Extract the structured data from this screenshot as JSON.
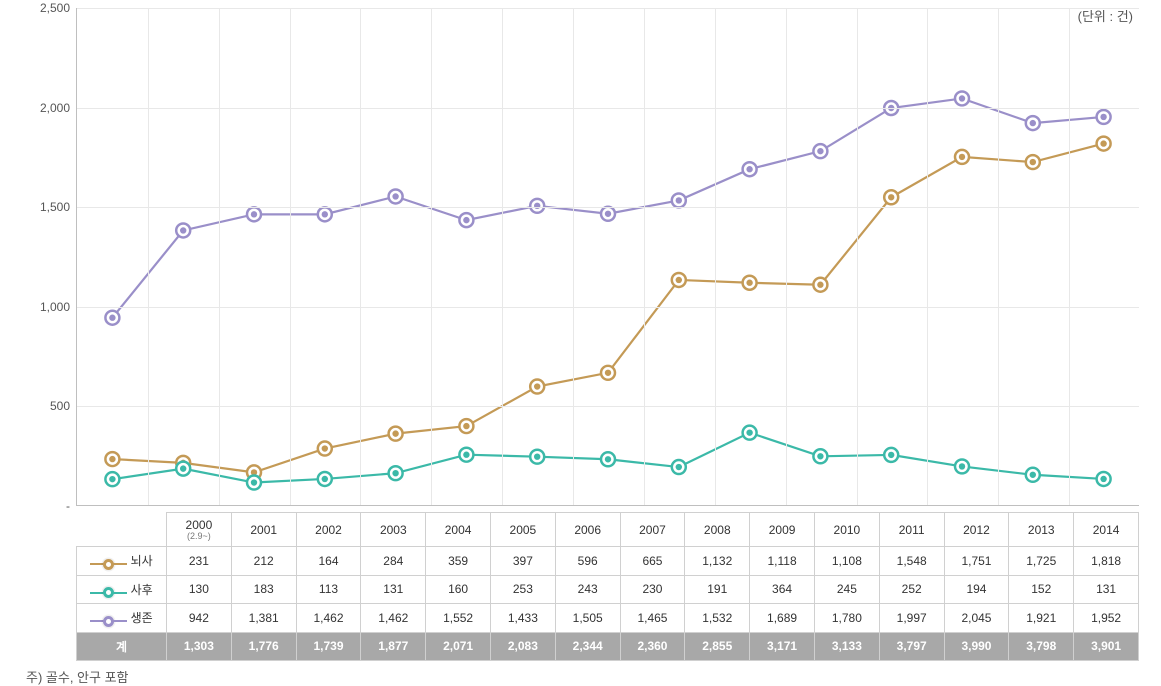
{
  "unit_label": "(단위 : 건)",
  "footnote": "주) 골수, 안구 포함",
  "chart": {
    "type": "line",
    "ymin": 0,
    "ymax": 2500,
    "ytick_step": 500,
    "yticks": [
      "-",
      "500",
      "1,000",
      "1,500",
      "2,000",
      "2,500"
    ],
    "xlabels": [
      "2000",
      "2001",
      "2002",
      "2003",
      "2004",
      "2005",
      "2006",
      "2007",
      "2008",
      "2009",
      "2010",
      "2011",
      "2012",
      "2013",
      "2014"
    ],
    "xlabel_sub0": "(2.9~)",
    "grid_color": "#e8e8e8",
    "axis_color": "#bfbfbf",
    "background_color": "#ffffff",
    "tick_fontsize": 12,
    "tick_color": "#555555",
    "marker_outer_radius": 7,
    "marker_inner_radius": 3.2,
    "line_width": 2.2,
    "series": [
      {
        "name": "뇌사",
        "color": "#c49a56",
        "values": [
          231,
          212,
          164,
          284,
          359,
          397,
          596,
          665,
          1132,
          1118,
          1108,
          1548,
          1751,
          1725,
          1818
        ],
        "display": [
          "231",
          "212",
          "164",
          "284",
          "359",
          "397",
          "596",
          "665",
          "1,132",
          "1,118",
          "1,108",
          "1,548",
          "1,751",
          "1,725",
          "1,818"
        ]
      },
      {
        "name": "사후",
        "color": "#3bb9a8",
        "values": [
          130,
          183,
          113,
          131,
          160,
          253,
          243,
          230,
          191,
          364,
          245,
          252,
          194,
          152,
          131
        ],
        "display": [
          "130",
          "183",
          "113",
          "131",
          "160",
          "253",
          "243",
          "230",
          "191",
          "364",
          "245",
          "252",
          "194",
          "152",
          "131"
        ]
      },
      {
        "name": "생존",
        "color": "#9a8fc9",
        "values": [
          942,
          1381,
          1462,
          1462,
          1552,
          1433,
          1505,
          1465,
          1532,
          1689,
          1780,
          1997,
          2045,
          1921,
          1952
        ],
        "display": [
          "942",
          "1,381",
          "1,462",
          "1,462",
          "1,552",
          "1,433",
          "1,505",
          "1,465",
          "1,532",
          "1,689",
          "1,780",
          "1,997",
          "2,045",
          "1,921",
          "1,952"
        ]
      }
    ],
    "sum_label": "계",
    "sum_row": [
      "1,303",
      "1,776",
      "1,739",
      "1,877",
      "2,071",
      "2,083",
      "2,344",
      "2,360",
      "2,855",
      "3,171",
      "3,133",
      "3,797",
      "3,990",
      "3,798",
      "3,901"
    ],
    "sum_row_bg": "#a8a8a8",
    "sum_row_text": "#ffffff"
  }
}
